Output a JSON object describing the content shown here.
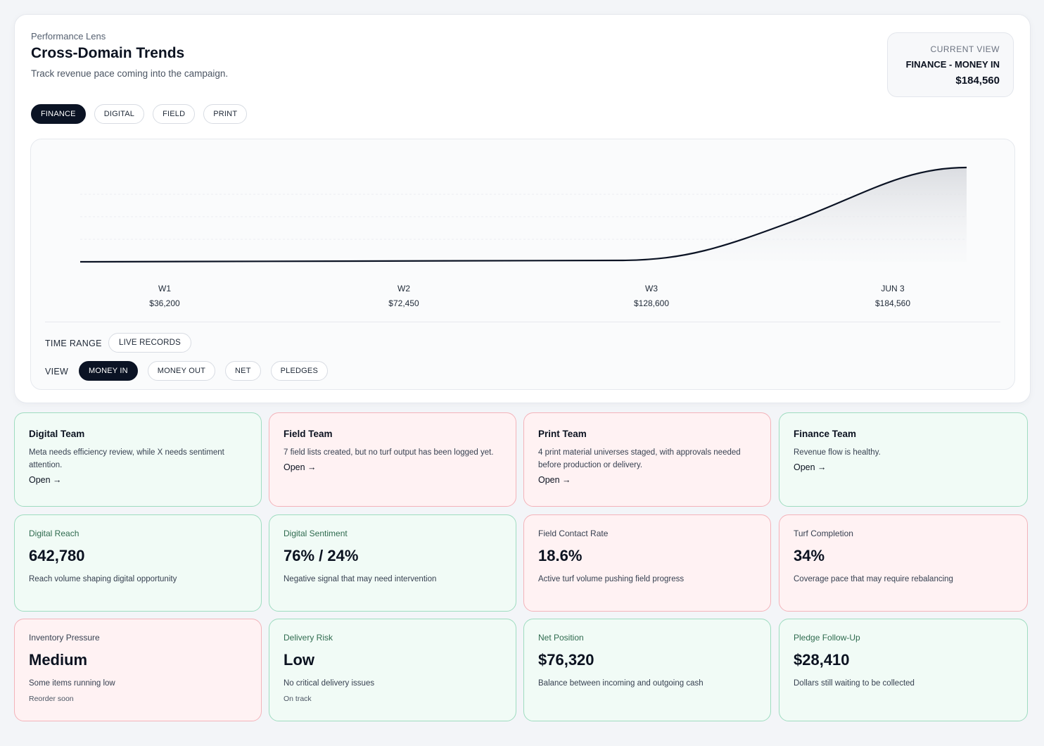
{
  "header": {
    "eyebrow": "Performance Lens",
    "title": "Cross-Domain Trends",
    "subtitle": "Track revenue pace coming into the campaign."
  },
  "current_view": {
    "label": "CURRENT VIEW",
    "name": "FINANCE - MONEY IN",
    "value": "$184,560"
  },
  "domain_tabs": [
    {
      "label": "FINANCE",
      "active": true
    },
    {
      "label": "DIGITAL",
      "active": false
    },
    {
      "label": "FIELD",
      "active": false
    },
    {
      "label": "PRINT",
      "active": false
    }
  ],
  "chart_data": {
    "type": "area",
    "categories": [
      "W1",
      "W2",
      "W3",
      "JUN 3"
    ],
    "values": [
      36200,
      72450,
      128600,
      184560
    ],
    "value_labels": [
      "$36,200",
      "$72,450",
      "$128,600",
      "$184,560"
    ],
    "title": "",
    "xlabel": "",
    "ylabel": "",
    "grid": true,
    "line_color": "#0b1324"
  },
  "controls": {
    "time_range_label": "TIME RANGE",
    "time_range_value": "LIVE RECORDS",
    "view_label": "VIEW",
    "view_options": [
      {
        "label": "MONEY IN",
        "active": true
      },
      {
        "label": "MONEY OUT",
        "active": false
      },
      {
        "label": "NET",
        "active": false
      },
      {
        "label": "PLEDGES",
        "active": false
      }
    ]
  },
  "teams": [
    {
      "name": "Digital Team",
      "desc": "Meta needs efficiency review, while X needs sentiment attention.",
      "link": "Open →",
      "status": "green"
    },
    {
      "name": "Field Team",
      "desc": "7 field lists created, but no turf output has been logged yet.",
      "link": "Open →",
      "status": "red"
    },
    {
      "name": "Print Team",
      "desc": "4 print material universes staged, with approvals needed before production or delivery.",
      "link": "Open →",
      "status": "red"
    },
    {
      "name": "Finance Team",
      "desc": "Revenue flow is healthy.",
      "link": "Open →",
      "status": "green"
    }
  ],
  "metrics": [
    {
      "label": "Digital Reach",
      "value": "642,780",
      "desc": "Reach volume shaping digital opportunity",
      "foot": "",
      "status": "green"
    },
    {
      "label": "Digital Sentiment",
      "value": "76% / 24%",
      "desc": "Negative signal that may need intervention",
      "foot": "",
      "status": "green"
    },
    {
      "label": "Field Contact Rate",
      "value": "18.6%",
      "desc": "Active turf volume pushing field progress",
      "foot": "",
      "status": "red"
    },
    {
      "label": "Turf Completion",
      "value": "34%",
      "desc": "Coverage pace that may require rebalancing",
      "foot": "",
      "status": "red"
    },
    {
      "label": "Inventory Pressure",
      "value": "Medium",
      "desc": "Some items running low",
      "foot": "Reorder soon",
      "status": "red"
    },
    {
      "label": "Delivery Risk",
      "value": "Low",
      "desc": "No critical delivery issues",
      "foot": "On track",
      "status": "green"
    },
    {
      "label": "Net Position",
      "value": "$76,320",
      "desc": "Balance between incoming and outgoing cash",
      "foot": "",
      "status": "green"
    },
    {
      "label": "Pledge Follow-Up",
      "value": "$28,410",
      "desc": "Dollars still waiting to be collected",
      "foot": "",
      "status": "green"
    }
  ]
}
